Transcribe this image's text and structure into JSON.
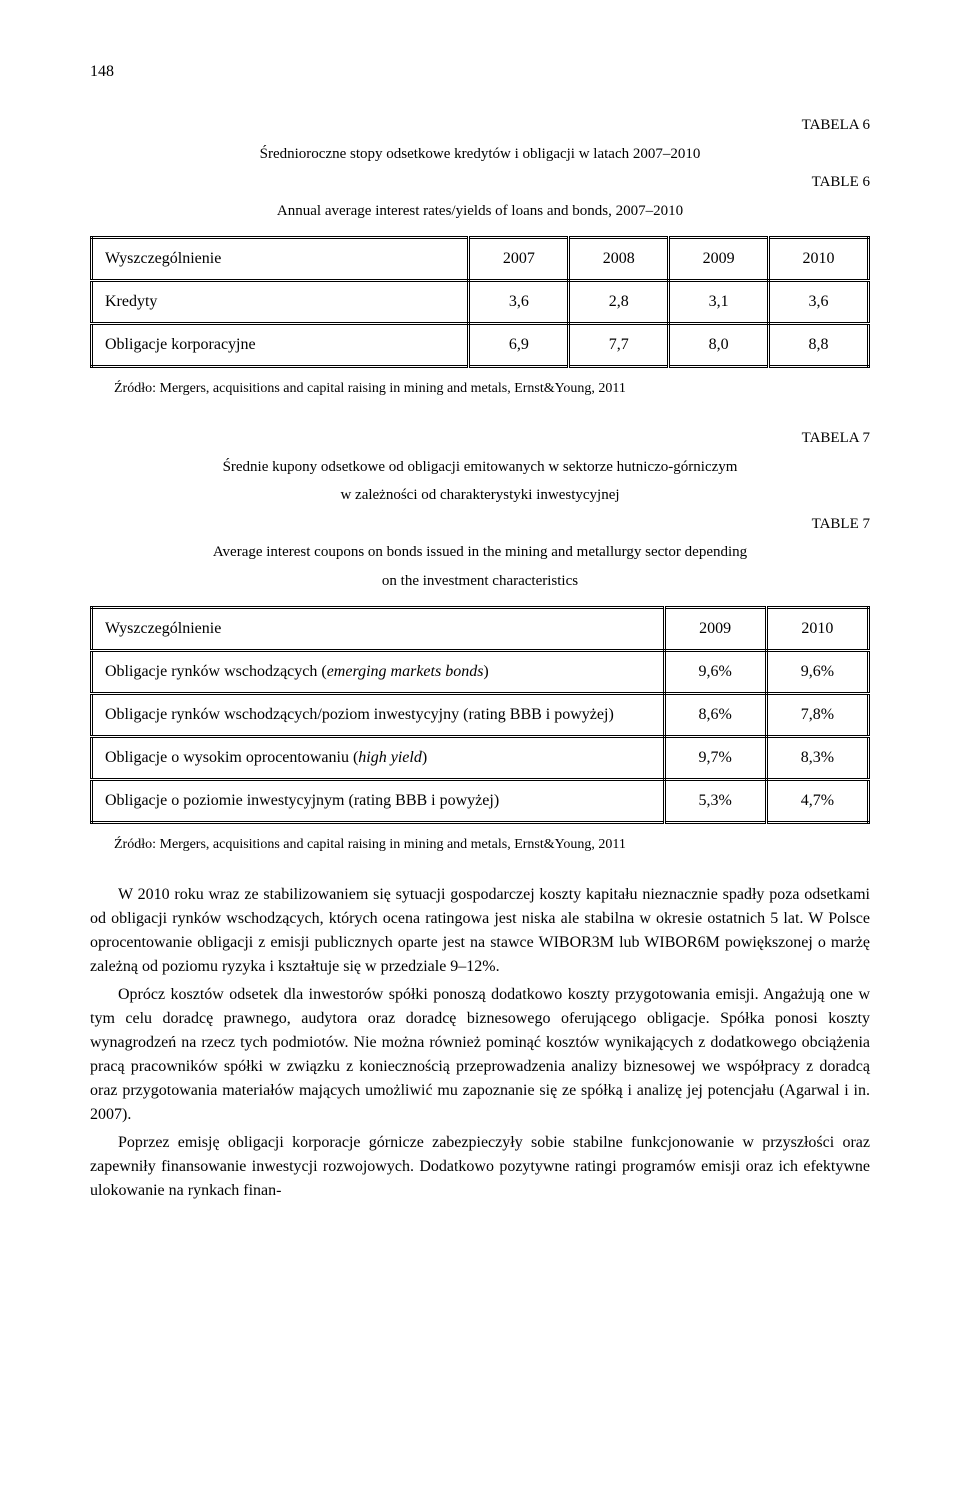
{
  "page_number": "148",
  "table6": {
    "label_pl": "TABELA 6",
    "label_en": "TABLE 6",
    "caption_pl": "Średnioroczne stopy odsetkowe kredytów i obligacji w latach 2007–2010",
    "caption_en": "Annual average interest rates/yields of loans and bonds, 2007–2010",
    "header": [
      "Wyszczególnienie",
      "2007",
      "2008",
      "2009",
      "2010"
    ],
    "rows": [
      [
        "Kredyty",
        "3,6",
        "2,8",
        "3,1",
        "3,6"
      ],
      [
        "Obligacje korporacyjne",
        "6,9",
        "7,7",
        "8,0",
        "8,8"
      ]
    ],
    "source": "Źródło: Mergers, acquisitions and capital raising in mining and metals, Ernst&Young, 2011"
  },
  "table7": {
    "label_pl": "TABELA 7",
    "label_en": "TABLE 7",
    "caption_pl_line1": "Średnie kupony odsetkowe od obligacji emitowanych w sektorze hutniczo-górniczym",
    "caption_pl_line2": "w zależności od charakterystyki inwestycyjnej",
    "caption_en_line1": "Average interest coupons on bonds issued in the mining and metallurgy sector depending",
    "caption_en_line2": "on the investment characteristics",
    "header": [
      "Wyszczególnienie",
      "2009",
      "2010"
    ],
    "rows": [
      [
        "Obligacje rynków wschodzących (emerging markets bonds)",
        "9,6%",
        "9,6%"
      ],
      [
        "Obligacje rynków wschodzących/poziom inwestycyjny (rating BBB i powyżej)",
        "8,6%",
        "7,8%"
      ],
      [
        "Obligacje o wysokim oprocentowaniu (high yield)",
        "9,7%",
        "8,3%"
      ],
      [
        "Obligacje o poziomie inwestycyjnym (rating BBB i powyżej)",
        "5,3%",
        "4,7%"
      ]
    ],
    "source": "Źródło: Mergers, acquisitions and capital raising in mining and metals, Ernst&Young, 2011"
  },
  "body": {
    "p1": "W 2010 roku wraz ze stabilizowaniem się sytuacji gospodarczej koszty kapitału nieznacznie spadły poza odsetkami od obligacji rynków wschodzących, których ocena ratingowa jest niska ale stabilna w okresie ostatnich 5 lat. W Polsce oprocentowanie obligacji z emisji publicznych oparte jest na stawce WIBOR3M lub WIBOR6M powiększonej o marżę zależną od poziomu ryzyka i kształtuje się w przedziale 9–12%.",
    "p2": "Oprócz kosztów odsetek dla inwestorów spółki ponoszą dodatkowo koszty przygotowania emisji. Angażują one w tym celu doradcę prawnego, audytora oraz doradcę biznesowego oferującego obligacje. Spółka ponosi koszty wynagrodzeń na rzecz tych podmiotów. Nie można również pominąć kosztów wynikających z dodatkowego obciążenia pracą pracowników spółki w związku z koniecznością przeprowadzenia analizy biznesowej we współpracy z doradcą oraz przygotowania materiałów mających umożliwić mu zapoznanie się ze spółką i analizę jej potencjału (Agarwal i in. 2007).",
    "p3": "Poprzez emisję obligacji korporacje górnicze zabezpieczyły sobie stabilne funkcjonowanie w przyszłości oraz zapewniły finansowanie inwestycji rozwojowych. Dodatkowo pozytywne ratingi programów emisji oraz ich efektywne ulokowanie na rynkach finan-"
  }
}
